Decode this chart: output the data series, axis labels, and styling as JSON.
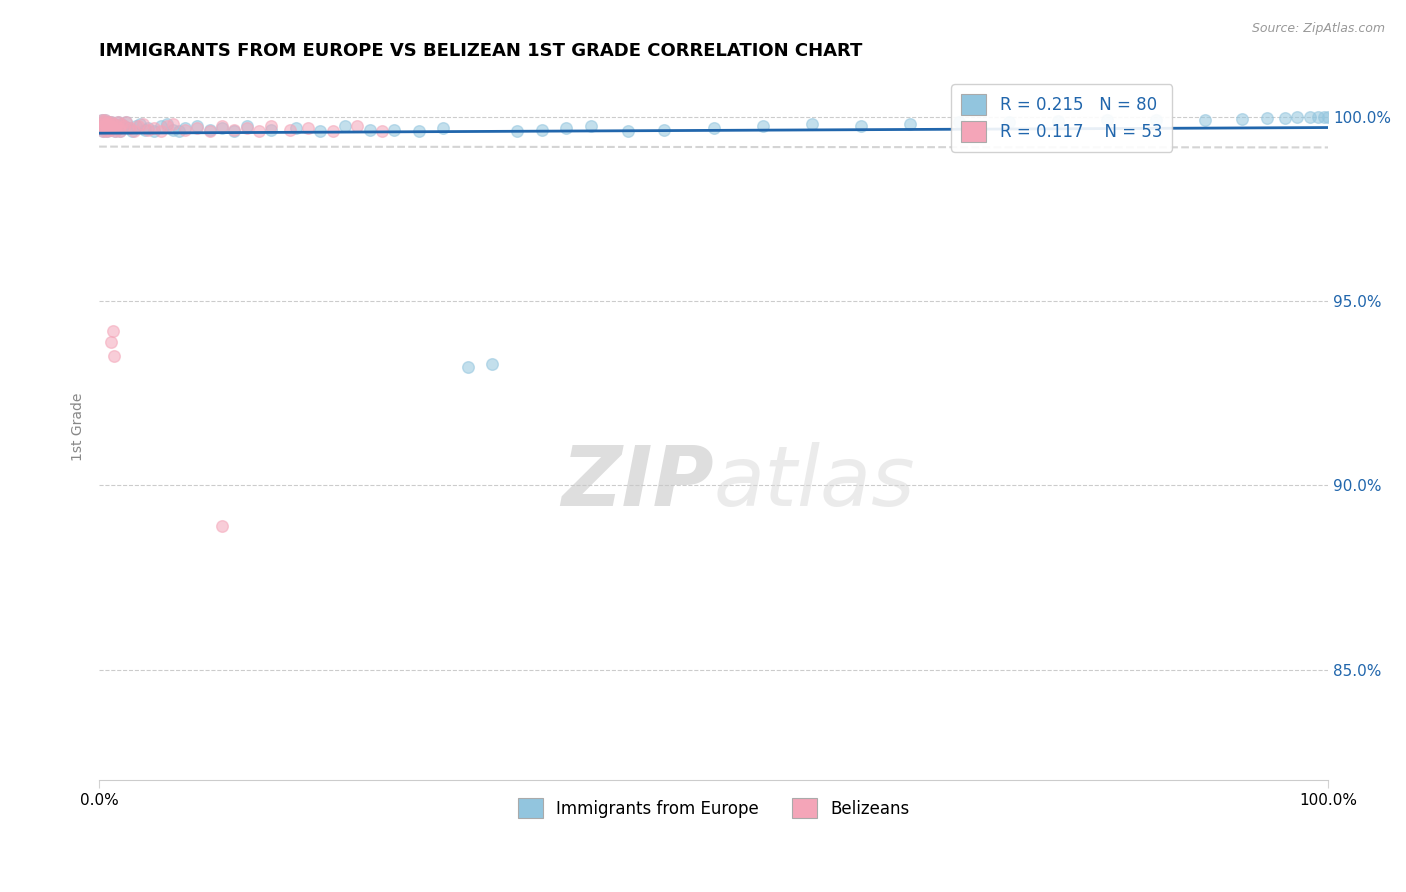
{
  "title": "IMMIGRANTS FROM EUROPE VS BELIZEAN 1ST GRADE CORRELATION CHART",
  "source_text": "Source: ZipAtlas.com",
  "ylabel": "1st Grade",
  "blue_R": 0.215,
  "blue_N": 80,
  "pink_R": 0.117,
  "pink_N": 53,
  "blue_color": "#92c5de",
  "pink_color": "#f4a5b8",
  "trend_blue": "#2166ac",
  "trend_pink": "#d6604d",
  "ytick_vals": [
    0.85,
    0.9,
    0.95,
    1.0
  ],
  "ytick_labels": [
    "85.0%",
    "90.0%",
    "95.0%",
    "100.0%"
  ],
  "blue_x": [
    0.001,
    0.002,
    0.002,
    0.003,
    0.003,
    0.004,
    0.004,
    0.005,
    0.005,
    0.006,
    0.006,
    0.007,
    0.007,
    0.008,
    0.008,
    0.009,
    0.01,
    0.01,
    0.011,
    0.012,
    0.013,
    0.014,
    0.015,
    0.016,
    0.017,
    0.018,
    0.02,
    0.022,
    0.024,
    0.027,
    0.03,
    0.033,
    0.037,
    0.04,
    0.045,
    0.05,
    0.055,
    0.06,
    0.065,
    0.07,
    0.08,
    0.09,
    0.1,
    0.11,
    0.12,
    0.14,
    0.16,
    0.18,
    0.2,
    0.22,
    0.24,
    0.26,
    0.28,
    0.3,
    0.32,
    0.34,
    0.36,
    0.38,
    0.4,
    0.43,
    0.46,
    0.5,
    0.54,
    0.58,
    0.62,
    0.66,
    0.7,
    0.74,
    0.78,
    0.82,
    0.86,
    0.9,
    0.93,
    0.95,
    0.965,
    0.975,
    0.985,
    0.992,
    0.997,
    1.0
  ],
  "blue_y": [
    0.998,
    0.997,
    0.999,
    0.996,
    0.9985,
    0.9975,
    0.9965,
    0.998,
    0.999,
    0.997,
    0.996,
    0.9985,
    0.9975,
    0.997,
    0.998,
    0.9965,
    0.9975,
    0.9985,
    0.997,
    0.998,
    0.996,
    0.9975,
    0.9985,
    0.997,
    0.996,
    0.998,
    0.9975,
    0.9985,
    0.997,
    0.996,
    0.9975,
    0.998,
    0.9965,
    0.997,
    0.996,
    0.9975,
    0.998,
    0.9965,
    0.996,
    0.997,
    0.9975,
    0.9965,
    0.997,
    0.996,
    0.9975,
    0.9965,
    0.997,
    0.996,
    0.9975,
    0.9965,
    0.9965,
    0.996,
    0.997,
    0.932,
    0.933,
    0.996,
    0.9965,
    0.997,
    0.9975,
    0.996,
    0.9965,
    0.997,
    0.9975,
    0.998,
    0.9975,
    0.998,
    0.9985,
    0.9985,
    0.9988,
    0.999,
    0.999,
    0.9992,
    0.9994,
    0.9996,
    0.9997,
    0.9998,
    0.9998,
    0.9999,
    1.0,
    1.0
  ],
  "pink_x": [
    0.001,
    0.002,
    0.002,
    0.003,
    0.003,
    0.004,
    0.005,
    0.005,
    0.006,
    0.006,
    0.007,
    0.007,
    0.008,
    0.008,
    0.009,
    0.01,
    0.01,
    0.011,
    0.012,
    0.013,
    0.014,
    0.015,
    0.016,
    0.017,
    0.018,
    0.02,
    0.022,
    0.025,
    0.028,
    0.032,
    0.036,
    0.04,
    0.045,
    0.05,
    0.055,
    0.06,
    0.07,
    0.08,
    0.09,
    0.1,
    0.11,
    0.12,
    0.13,
    0.14,
    0.155,
    0.17,
    0.19,
    0.21,
    0.23,
    0.01,
    0.011,
    0.012,
    0.1
  ],
  "pink_y": [
    0.998,
    0.997,
    0.999,
    0.996,
    0.9985,
    0.9975,
    0.998,
    0.999,
    0.997,
    0.996,
    0.9985,
    0.9975,
    0.997,
    0.998,
    0.9965,
    0.9975,
    0.9985,
    0.997,
    0.998,
    0.996,
    0.9975,
    0.9985,
    0.997,
    0.996,
    0.998,
    0.9975,
    0.9985,
    0.997,
    0.996,
    0.9975,
    0.998,
    0.9965,
    0.997,
    0.996,
    0.9975,
    0.998,
    0.9965,
    0.997,
    0.996,
    0.9975,
    0.9965,
    0.997,
    0.996,
    0.9975,
    0.9965,
    0.997,
    0.996,
    0.9975,
    0.996,
    0.939,
    0.942,
    0.935,
    0.889
  ]
}
